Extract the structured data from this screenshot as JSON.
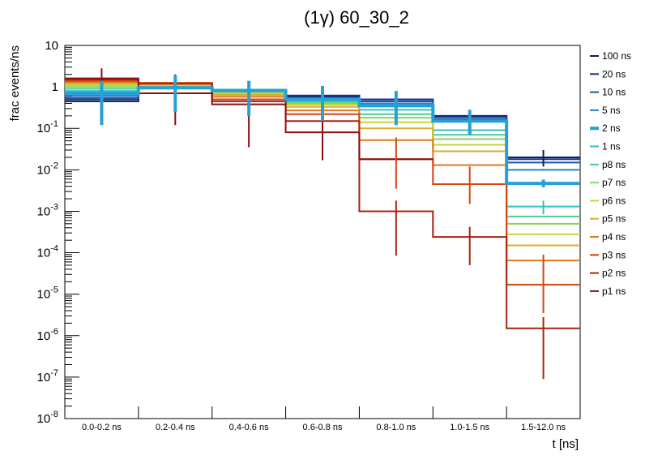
{
  "chart_data": {
    "type": "step",
    "title": "(1γ) 60_30_2",
    "xlabel": "t [ns]",
    "ylabel": "frac events/ns",
    "yscale": "log",
    "ylim": [
      1e-08,
      10
    ],
    "y_tick_labels": [
      {
        "base": "10",
        "exp": "-8"
      },
      {
        "base": "10",
        "exp": "-7"
      },
      {
        "base": "10",
        "exp": "-6"
      },
      {
        "base": "10",
        "exp": "-5"
      },
      {
        "base": "10",
        "exp": "-4"
      },
      {
        "base": "10",
        "exp": "-3"
      },
      {
        "base": "10",
        "exp": "-2"
      },
      {
        "base": "10",
        "exp": "-1"
      },
      {
        "base": "1",
        "exp": ""
      },
      {
        "base": "10",
        "exp": ""
      }
    ],
    "categories": [
      "0.0-0.2 ns",
      "0.2-0.4 ns",
      "0.4-0.6 ns",
      "0.6-0.8 ns",
      "0.8-1.0 ns",
      "1.0-1.5 ns",
      "1.5-12.0 ns"
    ],
    "highlight_series": "2 ns",
    "series": [
      {
        "name": "100 ns",
        "color": "#0a1f5c",
        "values": [
          0.45,
          0.95,
          0.8,
          0.6,
          0.45,
          0.2,
          0.02
        ]
      },
      {
        "name": "20 ns",
        "color": "#14338a",
        "values": [
          0.5,
          0.95,
          0.8,
          0.62,
          0.5,
          0.19,
          0.018
        ]
      },
      {
        "name": "10 ns",
        "color": "#1c55a8",
        "values": [
          0.55,
          0.95,
          0.8,
          0.55,
          0.45,
          0.17,
          0.015
        ]
      },
      {
        "name": "5 ns",
        "color": "#2a80c8",
        "values": [
          0.62,
          0.95,
          0.8,
          0.52,
          0.4,
          0.15,
          0.01
        ]
      },
      {
        "name": "2 ns",
        "color": "#27a0d6",
        "values": [
          0.7,
          0.95,
          0.82,
          0.5,
          0.35,
          0.15,
          0.0047
        ]
      },
      {
        "name": "1 ns",
        "color": "#2dc4c0",
        "values": [
          0.8,
          0.97,
          0.78,
          0.46,
          0.28,
          0.09,
          0.0013
        ]
      },
      {
        "name": "p8 ns",
        "color": "#52cc9a",
        "values": [
          0.9,
          1.0,
          0.75,
          0.43,
          0.22,
          0.07,
          0.00075
        ]
      },
      {
        "name": "p7 ns",
        "color": "#8bd45a",
        "values": [
          1.0,
          1.05,
          0.72,
          0.4,
          0.18,
          0.055,
          0.0005
        ]
      },
      {
        "name": "p6 ns",
        "color": "#c2d838",
        "values": [
          1.1,
          1.1,
          0.68,
          0.37,
          0.14,
          0.04,
          0.00028
        ]
      },
      {
        "name": "p5 ns",
        "color": "#d8b22e",
        "values": [
          1.2,
          1.15,
          0.64,
          0.33,
          0.1,
          0.028,
          0.00015
        ]
      },
      {
        "name": "p4 ns",
        "color": "#e07a1e",
        "values": [
          1.3,
          1.2,
          0.58,
          0.27,
          0.052,
          0.013,
          6.5e-05
        ]
      },
      {
        "name": "p3 ns",
        "color": "#d44414",
        "values": [
          1.4,
          1.25,
          0.5,
          0.22,
          0.018,
          0.0045,
          1.7e-05
        ]
      },
      {
        "name": "p2 ns",
        "color": "#a82410",
        "values": [
          1.5,
          1.2,
          0.45,
          0.15,
          0.001,
          0.00024,
          1.5e-06
        ]
      },
      {
        "name": "p1 ns",
        "color": "#8a0e0e",
        "values": [
          1.6,
          0.7,
          0.38,
          0.08,
          0.018,
          null,
          null
        ]
      }
    ],
    "error_bars": [
      {
        "series": "p1 ns",
        "bin": 0,
        "low": 0.15,
        "high": 2.8
      },
      {
        "series": "p1 ns",
        "bin": 1,
        "low": 0.12,
        "high": 2.0
      },
      {
        "series": "p1 ns",
        "bin": 2,
        "low": 0.035,
        "high": 1.0
      },
      {
        "series": "p1 ns",
        "bin": 3,
        "low": 0.017,
        "high": 0.3
      },
      {
        "series": "p2 ns",
        "bin": 4,
        "low": 8.5e-05,
        "high": 0.0018
      },
      {
        "series": "p2 ns",
        "bin": 5,
        "low": 5e-05,
        "high": 0.00042
      },
      {
        "series": "p2 ns",
        "bin": 6,
        "low": 9e-08,
        "high": 2.8e-06
      },
      {
        "series": "p3 ns",
        "bin": 4,
        "low": 0.0035,
        "high": 0.06
      },
      {
        "series": "p3 ns",
        "bin": 5,
        "low": 0.0015,
        "high": 0.012
      },
      {
        "series": "p3 ns",
        "bin": 6,
        "low": 3.5e-06,
        "high": 9e-05
      },
      {
        "series": "2 ns",
        "bin": 0,
        "low": 0.12,
        "high": 1.4
      },
      {
        "series": "2 ns",
        "bin": 1,
        "low": 0.25,
        "high": 1.9
      },
      {
        "series": "2 ns",
        "bin": 2,
        "low": 0.2,
        "high": 1.4
      },
      {
        "series": "2 ns",
        "bin": 3,
        "low": 0.15,
        "high": 1.05
      },
      {
        "series": "2 ns",
        "bin": 4,
        "low": 0.12,
        "high": 0.8
      },
      {
        "series": "2 ns",
        "bin": 5,
        "low": 0.07,
        "high": 0.28
      },
      {
        "series": "2 ns",
        "bin": 6,
        "low": 0.0038,
        "high": 0.0058
      },
      {
        "series": "1 ns",
        "bin": 6,
        "low": 0.00085,
        "high": 0.0018
      },
      {
        "series": "100 ns",
        "bin": 6,
        "low": 0.012,
        "high": 0.03
      }
    ],
    "legend_position": "right"
  }
}
